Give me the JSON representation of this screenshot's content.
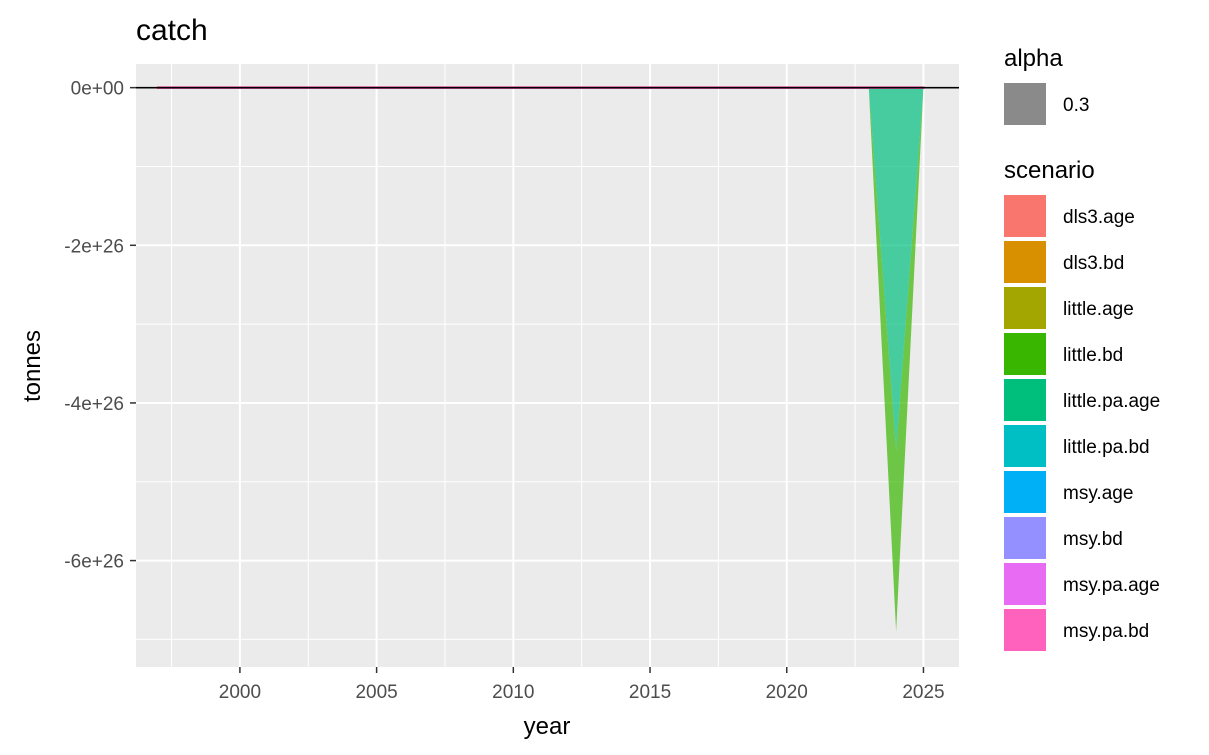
{
  "chart_data": {
    "type": "area",
    "title": "catch",
    "xlabel": "year",
    "ylabel": "tonnes",
    "x_ticks": [
      2000,
      2005,
      2010,
      2015,
      2020,
      2025
    ],
    "y_ticks": [
      0,
      -2e+26,
      -4e+26,
      -6e+26
    ],
    "y_tick_labels": [
      "0e+00",
      "-2e+26",
      "-4e+26",
      "-6e+26"
    ],
    "xlim": [
      1996.2,
      2026.3
    ],
    "ylim": [
      -7.35e+26,
      3e+25
    ],
    "grid": true,
    "background": "#ebebeb",
    "hline_y": 0,
    "legends": [
      {
        "title": "alpha",
        "entries": [
          {
            "label": "0.3",
            "color": "#8a8a8a"
          }
        ]
      },
      {
        "title": "scenario",
        "entries": [
          {
            "label": "dls3.age",
            "color": "#F8766D"
          },
          {
            "label": "dls3.bd",
            "color": "#D89000"
          },
          {
            "label": "little.age",
            "color": "#A3A500"
          },
          {
            "label": "little.bd",
            "color": "#39B600"
          },
          {
            "label": "little.pa.age",
            "color": "#00BF7D"
          },
          {
            "label": "little.pa.bd",
            "color": "#00BFC4"
          },
          {
            "label": "msy.age",
            "color": "#00B0F6"
          },
          {
            "label": "msy.bd",
            "color": "#9590FF"
          },
          {
            "label": "msy.pa.age",
            "color": "#E76BF3"
          },
          {
            "label": "msy.pa.bd",
            "color": "#FF62BC"
          }
        ]
      }
    ],
    "series": [
      {
        "scenario": "little.bd",
        "x": [
          2023,
          2024,
          2025
        ],
        "ymin": [
          0,
          -6.9e+26,
          0
        ],
        "ymax": [
          0,
          -4.6e+26,
          0
        ],
        "color": "#39B600"
      },
      {
        "scenario": "little.pa.age",
        "x": [
          2023,
          2024,
          2025
        ],
        "ymin": [
          0,
          -4.6e+26,
          0
        ],
        "ymax": [
          0,
          0,
          0
        ],
        "color": "#00BF7D"
      },
      {
        "scenario": "msy.pa.bd",
        "x": [
          1997,
          2025
        ],
        "ymin": [
          -5e+23,
          -5e+23
        ],
        "ymax": [
          5e+23,
          5e+23
        ],
        "color": "#FF62BC"
      }
    ]
  }
}
